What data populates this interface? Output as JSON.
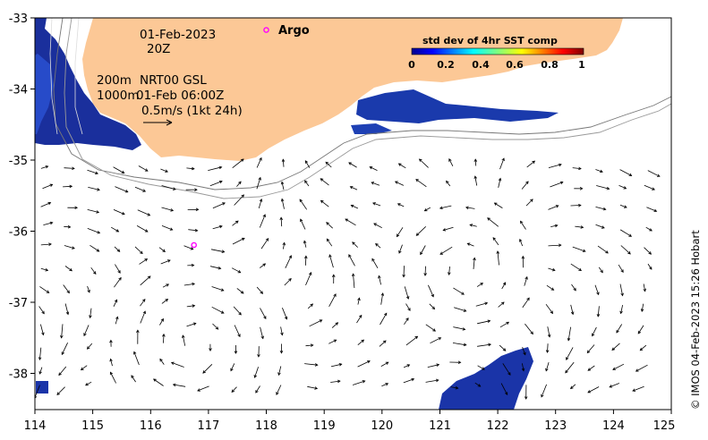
{
  "map": {
    "date_label": "01-Feb-2023",
    "hour_label": "20Z",
    "depth_200": "200m",
    "depth_1000": "1000m",
    "source_label": "NRT00 GSL",
    "valid_time_label": "01-Feb 06:00Z",
    "scale_label": "0.5m/s (1kt 24h)",
    "argo_label": "Argo",
    "credit": "© IMOS 04-Feb-2023 15:26 Hobart",
    "land_color": "#fcc896",
    "ocean_color": "#ffffff",
    "arrow_color": "#000000",
    "argo_color": "#ff00ff",
    "x_ticks": [
      "114",
      "115",
      "116",
      "117",
      "118",
      "119",
      "120",
      "121",
      "122",
      "123",
      "124",
      "125"
    ],
    "y_ticks": [
      "-33",
      "-34",
      "-35",
      "-36",
      "-37",
      "-38"
    ],
    "argo_floats": [
      {
        "lon": 118.0,
        "lat": -33.17,
        "labelled": true
      },
      {
        "lon": 116.75,
        "lat": -36.2,
        "labelled": false
      }
    ]
  },
  "colorbar": {
    "title": "std dev of 4hr SST comp",
    "ticks": [
      "0",
      "0.2",
      "0.4",
      "0.6",
      "0.8",
      "1"
    ],
    "colormap": "jet"
  }
}
